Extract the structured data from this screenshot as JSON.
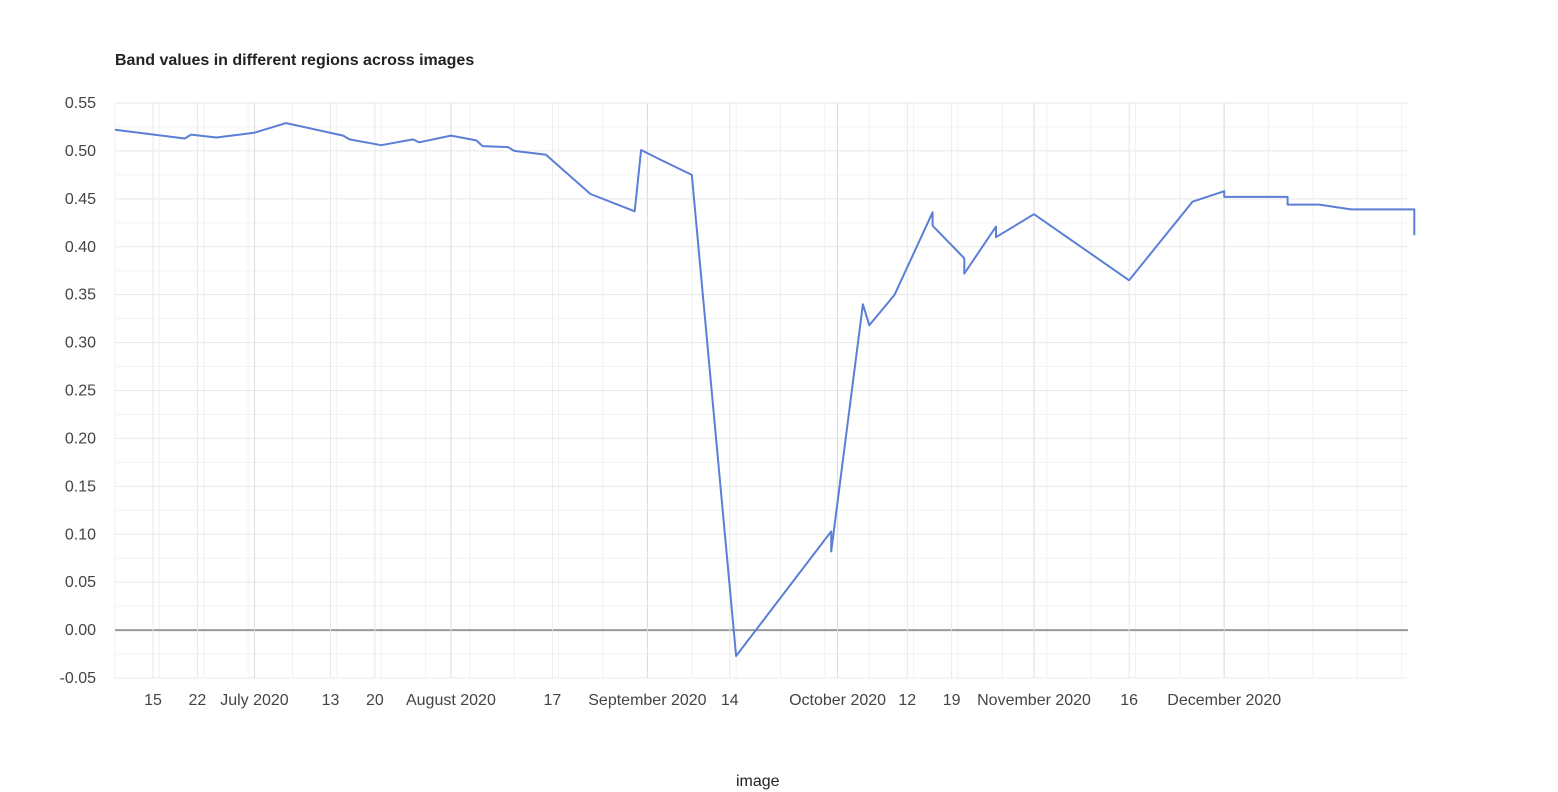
{
  "chart_data": {
    "type": "line",
    "title": "Band values in different regions across images",
    "xlabel": "image",
    "ylabel": "",
    "ylim": [
      -0.05,
      0.55
    ],
    "y_ticks": [
      "0.55",
      "0.50",
      "0.45",
      "0.40",
      "0.35",
      "0.30",
      "0.25",
      "0.20",
      "0.15",
      "0.10",
      "0.05",
      "0.00",
      "-0.05"
    ],
    "y_tick_values": [
      0.55,
      0.5,
      0.45,
      0.4,
      0.35,
      0.3,
      0.25,
      0.2,
      0.15,
      0.1,
      0.05,
      0.0,
      -0.05
    ],
    "xlim": [
      "2020-06-09",
      "2020-12-30"
    ],
    "x_ticks": [
      {
        "label": "15",
        "date": "2020-06-15"
      },
      {
        "label": "22",
        "date": "2020-06-22"
      },
      {
        "label": "July 2020",
        "date": "2020-07-01"
      },
      {
        "label": "13",
        "date": "2020-07-13"
      },
      {
        "label": "20",
        "date": "2020-07-20"
      },
      {
        "label": "August 2020",
        "date": "2020-08-01"
      },
      {
        "label": "17",
        "date": "2020-08-17"
      },
      {
        "label": "September 2020",
        "date": "2020-09-01"
      },
      {
        "label": "14",
        "date": "2020-09-14"
      },
      {
        "label": "October 2020",
        "date": "2020-10-01"
      },
      {
        "label": "12",
        "date": "2020-10-12"
      },
      {
        "label": "19",
        "date": "2020-10-19"
      },
      {
        "label": "November 2020",
        "date": "2020-11-01"
      },
      {
        "label": "16",
        "date": "2020-11-16"
      },
      {
        "label": "December 2020",
        "date": "2020-12-01"
      }
    ],
    "grid": true,
    "colors": {
      "series": "#5b7fd6",
      "zero_line": "#999999",
      "grid": "#e8e8e8"
    },
    "series": [
      {
        "x": [
          "2020-06-09",
          "2020-06-20",
          "2020-06-21",
          "2020-06-25",
          "2020-07-01",
          "2020-07-06",
          "2020-07-15",
          "2020-07-16",
          "2020-07-21",
          "2020-07-26",
          "2020-07-27",
          "2020-08-01",
          "2020-08-05",
          "2020-08-06",
          "2020-08-10",
          "2020-08-11",
          "2020-08-16",
          "2020-08-23",
          "2020-08-30",
          "2020-08-31",
          "2020-09-03",
          "2020-09-08",
          "2020-09-15",
          "2020-09-30",
          "2020-09-30",
          "2020-10-05",
          "2020-10-06",
          "2020-10-10",
          "2020-10-16",
          "2020-10-16",
          "2020-10-21",
          "2020-10-21",
          "2020-10-21",
          "2020-10-26",
          "2020-10-26",
          "2020-11-01",
          "2020-11-16",
          "2020-11-26",
          "2020-12-01",
          "2020-12-01",
          "2020-12-05",
          "2020-12-06",
          "2020-12-11",
          "2020-12-11",
          "2020-12-16",
          "2020-12-16",
          "2020-12-21",
          "2020-12-21",
          "2020-12-31",
          "2020-12-31"
        ],
        "values": [
          0.522,
          0.513,
          0.517,
          0.514,
          0.519,
          0.529,
          0.516,
          0.512,
          0.506,
          0.512,
          0.509,
          0.516,
          0.511,
          0.505,
          0.504,
          0.5,
          0.496,
          0.455,
          0.437,
          0.501,
          0.491,
          0.475,
          -0.027,
          0.103,
          0.082,
          0.34,
          0.318,
          0.35,
          0.436,
          0.422,
          0.388,
          0.373,
          0.372,
          0.421,
          0.41,
          0.434,
          0.365,
          0.447,
          0.458,
          0.452,
          0.452,
          0.452,
          0.452,
          0.444,
          0.444,
          0.444,
          0.439,
          0.439,
          0.439,
          0.412
        ]
      }
    ]
  }
}
